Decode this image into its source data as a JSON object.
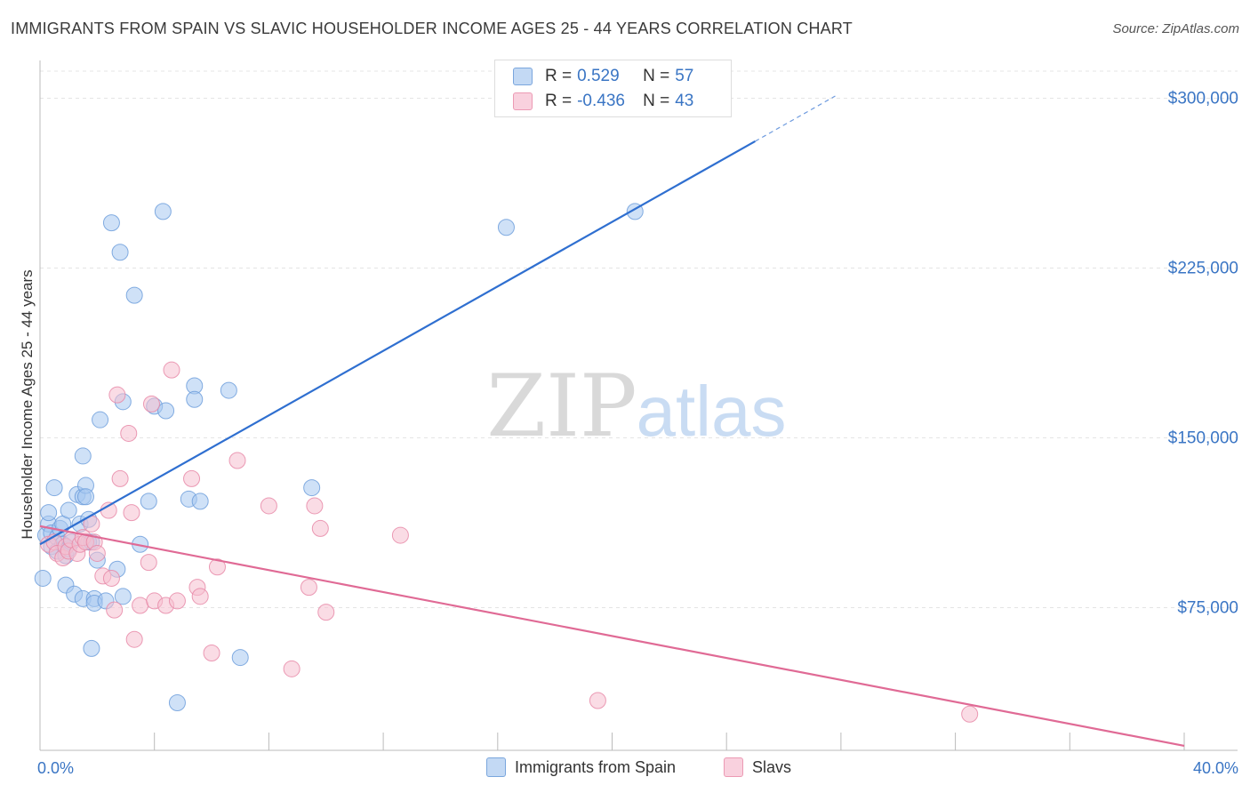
{
  "title": "IMMIGRANTS FROM SPAIN VS SLAVIC HOUSEHOLDER INCOME AGES 25 - 44 YEARS CORRELATION CHART",
  "source": "Source: ZipAtlas.com",
  "watermark": {
    "zip": "ZIP",
    "atlas": "atlas"
  },
  "legend": {
    "r_label": "R =",
    "n_label": "N =",
    "rows": [
      {
        "series": "Immigrants from Spain",
        "r": "0.529",
        "n": "57",
        "color": "#a8c8f0",
        "edge": "#6f9fdc"
      },
      {
        "series": "Slavs",
        "r": "-0.436",
        "n": "43",
        "color": "#f6bfd0",
        "edge": "#e88aa8"
      }
    ]
  },
  "chart_data": {
    "type": "scatter",
    "title": "IMMIGRANTS FROM SPAIN VS SLAVIC HOUSEHOLDER INCOME AGES 25 - 44 YEARS CORRELATION CHART",
    "xlabel": "",
    "ylabel": "Householder Income Ages 25 - 44 years",
    "xlim": [
      0,
      40
    ],
    "ylim": [
      12000,
      312000
    ],
    "x_tick_labels": [
      "0.0%",
      "40.0%"
    ],
    "y_ticks": [
      75000,
      150000,
      225000,
      300000
    ],
    "y_tick_labels": [
      "$75,000",
      "$150,000",
      "$225,000",
      "$300,000"
    ],
    "grid": true,
    "legend_position": "top-center",
    "series": [
      {
        "name": "Immigrants from Spain",
        "color": "#6f9fdc",
        "fill": "#a8c8f0",
        "trend": {
          "x": [
            0,
            25
          ],
          "y": [
            103000,
            281000
          ],
          "dashed_to": {
            "x": 27.8,
            "y": 301000
          },
          "color": "#2f6fd0"
        },
        "points": [
          [
            0.1,
            88000
          ],
          [
            0.2,
            107000
          ],
          [
            0.3,
            112000
          ],
          [
            0.3,
            117000
          ],
          [
            0.4,
            108000
          ],
          [
            0.4,
            102000
          ],
          [
            0.5,
            128000
          ],
          [
            0.6,
            106000
          ],
          [
            0.6,
            100000
          ],
          [
            0.7,
            110000
          ],
          [
            0.8,
            112000
          ],
          [
            0.8,
            103000
          ],
          [
            0.9,
            98000
          ],
          [
            0.9,
            85000
          ],
          [
            1.0,
            118000
          ],
          [
            1.0,
            101000
          ],
          [
            1.1,
            104000
          ],
          [
            1.2,
            81000
          ],
          [
            1.3,
            125000
          ],
          [
            1.4,
            112000
          ],
          [
            1.5,
            124000
          ],
          [
            1.5,
            79000
          ],
          [
            1.5,
            142000
          ],
          [
            1.6,
            129000
          ],
          [
            1.6,
            124000
          ],
          [
            1.7,
            104000
          ],
          [
            1.7,
            114000
          ],
          [
            1.8,
            104000
          ],
          [
            1.8,
            57000
          ],
          [
            1.9,
            79000
          ],
          [
            1.9,
            77000
          ],
          [
            2.0,
            96000
          ],
          [
            2.1,
            158000
          ],
          [
            2.3,
            78000
          ],
          [
            2.5,
            245000
          ],
          [
            2.7,
            92000
          ],
          [
            2.8,
            232000
          ],
          [
            2.9,
            166000
          ],
          [
            2.9,
            80000
          ],
          [
            3.3,
            213000
          ],
          [
            3.5,
            103000
          ],
          [
            3.8,
            122000
          ],
          [
            4.0,
            164000
          ],
          [
            4.3,
            250000
          ],
          [
            4.4,
            162000
          ],
          [
            4.8,
            33000
          ],
          [
            5.2,
            123000
          ],
          [
            5.4,
            173000
          ],
          [
            5.4,
            167000
          ],
          [
            5.6,
            122000
          ],
          [
            6.6,
            171000
          ],
          [
            7.0,
            53000
          ],
          [
            9.5,
            128000
          ],
          [
            16.3,
            243000
          ],
          [
            20.8,
            250000
          ]
        ]
      },
      {
        "name": "Slavs",
        "color": "#e88aa8",
        "fill": "#f6bfd0",
        "trend": {
          "x": [
            0,
            40
          ],
          "y": [
            111000,
            14000
          ],
          "color": "#e06a95"
        },
        "points": [
          [
            0.3,
            103000
          ],
          [
            0.5,
            104000
          ],
          [
            0.6,
            99000
          ],
          [
            0.8,
            97000
          ],
          [
            0.9,
            102000
          ],
          [
            1.0,
            100000
          ],
          [
            1.1,
            105000
          ],
          [
            1.3,
            99000
          ],
          [
            1.4,
            103000
          ],
          [
            1.5,
            106000
          ],
          [
            1.6,
            104000
          ],
          [
            1.8,
            112000
          ],
          [
            1.9,
            104000
          ],
          [
            2.0,
            99000
          ],
          [
            2.2,
            89000
          ],
          [
            2.4,
            118000
          ],
          [
            2.5,
            88000
          ],
          [
            2.6,
            74000
          ],
          [
            2.7,
            169000
          ],
          [
            2.8,
            132000
          ],
          [
            3.1,
            152000
          ],
          [
            3.2,
            117000
          ],
          [
            3.3,
            61000
          ],
          [
            3.5,
            76000
          ],
          [
            3.8,
            95000
          ],
          [
            3.9,
            165000
          ],
          [
            4.0,
            78000
          ],
          [
            4.4,
            76000
          ],
          [
            4.6,
            180000
          ],
          [
            4.8,
            78000
          ],
          [
            5.3,
            132000
          ],
          [
            5.5,
            84000
          ],
          [
            5.6,
            80000
          ],
          [
            6.0,
            55000
          ],
          [
            6.2,
            93000
          ],
          [
            6.9,
            140000
          ],
          [
            8.0,
            120000
          ],
          [
            8.8,
            48000
          ],
          [
            9.4,
            84000
          ],
          [
            9.6,
            120000
          ],
          [
            9.8,
            110000
          ],
          [
            10.0,
            73000
          ],
          [
            12.6,
            107000
          ],
          [
            19.5,
            34000
          ],
          [
            32.5,
            28000
          ]
        ]
      }
    ]
  }
}
